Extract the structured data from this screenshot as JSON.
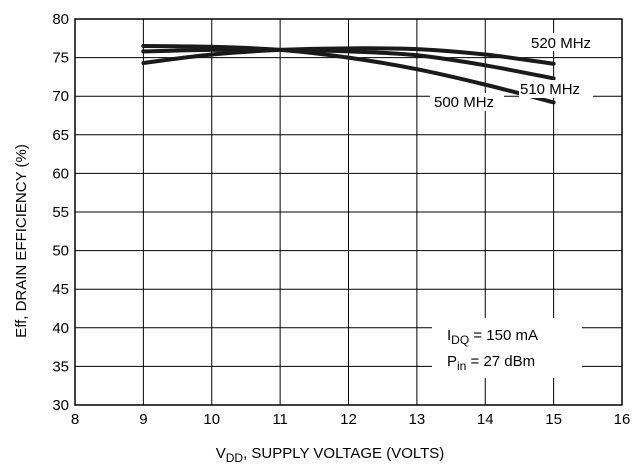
{
  "chart_data": {
    "type": "line",
    "xlabel_main": "V",
    "xlabel_sub": "DD",
    "xlabel_rest": ", SUPPLY VOLTAGE (VOLTS)",
    "ylabel": "Eff, DRAIN EFFICIENCY (%)",
    "xlim": [
      8,
      16
    ],
    "ylim": [
      30,
      80
    ],
    "x_ticks": [
      "8",
      "9",
      "10",
      "11",
      "12",
      "13",
      "14",
      "15",
      "16"
    ],
    "y_ticks": [
      "30",
      "35",
      "40",
      "45",
      "50",
      "55",
      "60",
      "65",
      "70",
      "75",
      "80"
    ],
    "grid": true,
    "series": [
      {
        "name": "500 MHz",
        "x": [
          9,
          10,
          11,
          12,
          13,
          14,
          15
        ],
        "y": [
          76.5,
          76.4,
          76.0,
          75.0,
          73.5,
          71.5,
          69.2
        ]
      },
      {
        "name": "510 MHz",
        "x": [
          9,
          10,
          11,
          12,
          13,
          14,
          15
        ],
        "y": [
          75.8,
          76.0,
          76.0,
          75.8,
          75.3,
          74.0,
          72.3
        ]
      },
      {
        "name": "520 MHz",
        "x": [
          9,
          10,
          11,
          12,
          13,
          14,
          15
        ],
        "y": [
          74.3,
          75.4,
          76.0,
          76.2,
          76.1,
          75.4,
          74.2
        ]
      }
    ],
    "annotation": {
      "line1_main": "I",
      "line1_sub": "DQ",
      "line1_rest": " = 150 mA",
      "line2_main": "P",
      "line2_sub": "in",
      "line2_rest": " = 27 dBm"
    }
  }
}
